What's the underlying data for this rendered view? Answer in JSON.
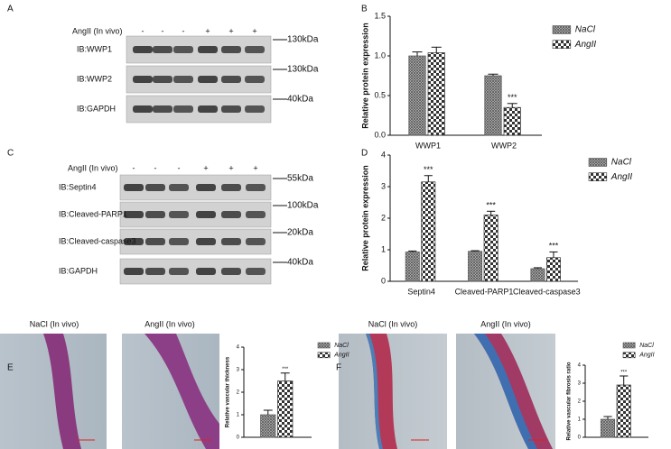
{
  "blots": [
    {
      "panel": "A",
      "header": "AngII (In vivo)",
      "signs": [
        "-",
        "-",
        "-",
        "+",
        "+",
        "+"
      ],
      "rows": [
        {
          "label": "IB:WWP1",
          "marker": "130kDa"
        },
        {
          "label": "IB:WWP2",
          "marker": "130kDa"
        },
        {
          "label": "IB:GAPDH",
          "marker": "40kDa"
        }
      ]
    },
    {
      "panel": "C",
      "header": "AngII (In vivo)",
      "signs": [
        "-",
        "-",
        "-",
        "+",
        "+",
        "+"
      ],
      "rows": [
        {
          "label": "IB:Septin4",
          "marker": "55kDa"
        },
        {
          "label": "IB:Cleaved-PARP1",
          "marker": "100kDa"
        },
        {
          "label": "IB:Cleaved-caspase3",
          "marker": "20kDa"
        },
        {
          "label": "IB:GAPDH",
          "marker": "40kDa"
        }
      ]
    }
  ],
  "images": [
    {
      "panel": "E",
      "captions": [
        "NaCl (In vivo)",
        "AngII (In vivo)"
      ]
    },
    {
      "panel": "F",
      "captions": [
        "NaCl (In vivo)",
        "AngII (In vivo)"
      ]
    }
  ],
  "chart_data": [
    {
      "type": "bar",
      "panel": "B",
      "ylabel": "Relative protein expression",
      "categories": [
        "WWP1",
        "WWP2"
      ],
      "series": [
        {
          "name": "NaCl",
          "color": "#555555",
          "values": [
            1.0,
            0.75
          ],
          "errors": [
            0.05,
            0.02
          ]
        },
        {
          "name": "AngII",
          "color": "#333333",
          "values": [
            1.04,
            0.35
          ],
          "errors": [
            0.07,
            0.05
          ],
          "value_labels": [
            null,
            "***"
          ]
        }
      ],
      "ylim": [
        0,
        1.5
      ],
      "yticks": [
        {
          "value": 0,
          "label": "0.0"
        },
        {
          "value": 0.5,
          "label": "0.5"
        },
        {
          "value": 1,
          "label": "1.0"
        },
        {
          "value": 1.5,
          "label": "1.5"
        }
      ]
    },
    {
      "type": "bar",
      "panel": "D",
      "ylabel": "Relative protein expression",
      "categories": [
        "Septin4",
        "Cleaved-PARP1",
        "Cleaved-caspase3"
      ],
      "series": [
        {
          "name": "NaCl",
          "color": "#555555",
          "values": [
            0.93,
            0.95,
            0.4
          ],
          "errors": [
            0.03,
            0.02,
            0.03
          ]
        },
        {
          "name": "AngII",
          "color": "#333333",
          "values": [
            3.15,
            2.1,
            0.75
          ],
          "errors": [
            0.2,
            0.12,
            0.18
          ],
          "value_labels": [
            "***",
            "***",
            "***"
          ]
        }
      ],
      "ylim": [
        0,
        4
      ],
      "yticks": [
        0,
        1,
        2,
        3,
        4
      ]
    },
    {
      "type": "bar",
      "ylabel": "Relative vascular thickness",
      "categories": [
        null
      ],
      "series": [
        {
          "name": "NaCl",
          "color": "#555555",
          "values": [
            1.0
          ],
          "errors": [
            0.2
          ]
        },
        {
          "name": "AngII",
          "color": "#333333",
          "values": [
            2.5
          ],
          "errors": [
            0.35
          ],
          "value_labels": [
            "***"
          ]
        }
      ],
      "ylim": [
        0,
        4
      ],
      "yticks": [
        0,
        1,
        2,
        3,
        4
      ]
    },
    {
      "type": "bar",
      "ylabel": "Relative vascular fibrosis ratio",
      "categories": [
        null
      ],
      "series": [
        {
          "name": "NaCl",
          "color": "#555555",
          "values": [
            1.0
          ],
          "errors": [
            0.15
          ]
        },
        {
          "name": "AngII",
          "color": "#333333",
          "values": [
            2.9
          ],
          "errors": [
            0.5
          ],
          "value_labels": [
            "***"
          ]
        }
      ],
      "ylim": [
        0,
        4
      ],
      "yticks": [
        0,
        1,
        2,
        3,
        4
      ]
    }
  ]
}
